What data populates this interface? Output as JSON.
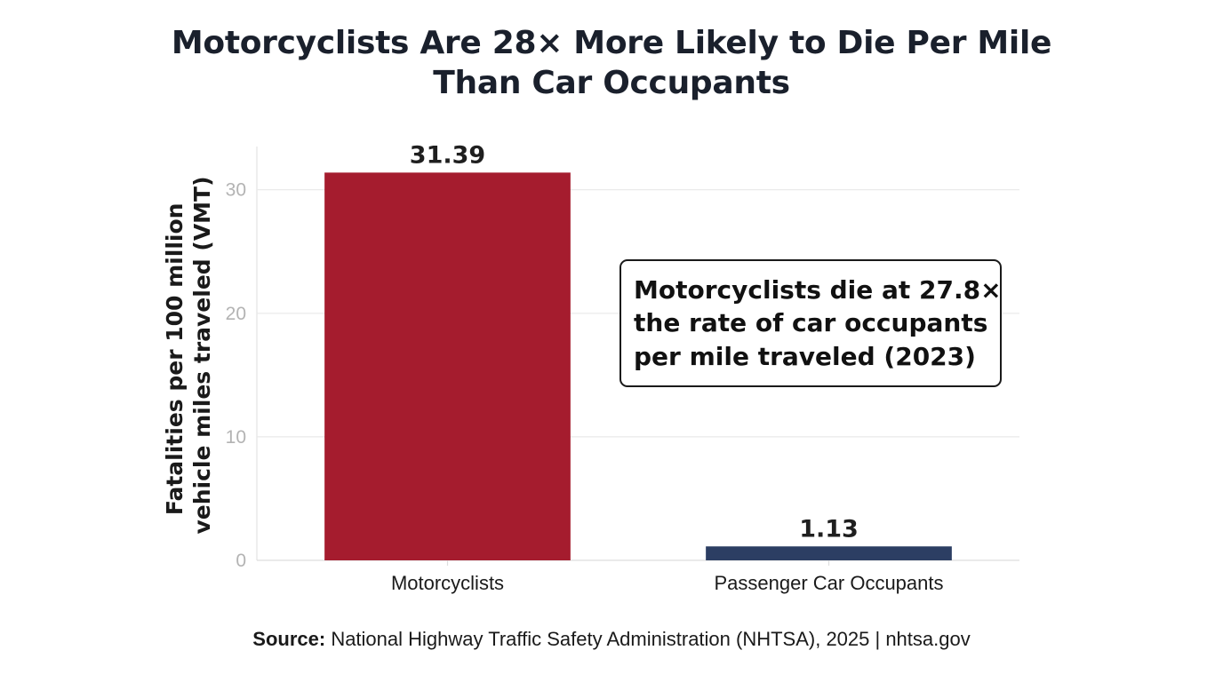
{
  "chart_data": {
    "type": "bar",
    "title": [
      "Motorcyclists Are 28× More Likely to Die Per Mile",
      "Than Car Occupants"
    ],
    "categories": [
      "Motorcyclists",
      "Passenger Car Occupants"
    ],
    "values": [
      31.39,
      1.13
    ],
    "value_labels": [
      "31.39",
      "1.13"
    ],
    "colors": [
      "#a51c2e",
      "#2c3e63"
    ],
    "ylabel": [
      "Fatalities per 100 million",
      "vehicle miles traveled (VMT)"
    ],
    "xlabel": "",
    "ylim": [
      0,
      33.5
    ],
    "yticks": [
      0,
      10,
      20,
      30
    ],
    "grid": true,
    "annotation": [
      "Motorcyclists die at 27.8×",
      "the rate of car occupants",
      "per mile traveled (2023)"
    ]
  },
  "source": {
    "label": "Source:",
    "text": "National Highway Traffic Safety Administration (NHTSA), 2025 | nhtsa.gov"
  }
}
